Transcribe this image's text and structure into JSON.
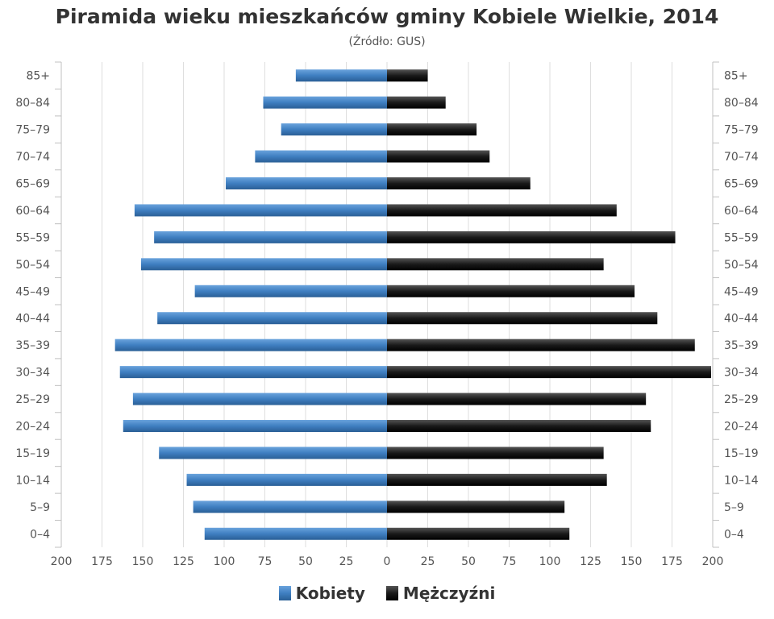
{
  "chart_data": {
    "type": "bar",
    "orientation": "horizontal-population-pyramid",
    "title": "Piramida wieku mieszkańców gminy Kobiele Wielkie, 2014",
    "subtitle": "(Źródło: GUS)",
    "categories": [
      "85+",
      "80–84",
      "75–79",
      "70–74",
      "65–69",
      "60–64",
      "55–59",
      "50–54",
      "45–49",
      "40–44",
      "35–39",
      "30–34",
      "25–29",
      "20–24",
      "15–19",
      "10–14",
      "5–9",
      "0–4"
    ],
    "series": [
      {
        "name": "Kobiety",
        "color": "#3f7fc1",
        "values": [
          56,
          76,
          65,
          81,
          99,
          155,
          143,
          151,
          118,
          141,
          167,
          164,
          156,
          162,
          140,
          123,
          119,
          112
        ]
      },
      {
        "name": "Mężczyźni",
        "color": "#1a1a1a",
        "values": [
          25,
          36,
          55,
          63,
          88,
          141,
          177,
          133,
          152,
          166,
          189,
          199,
          159,
          162,
          133,
          135,
          109,
          112
        ]
      }
    ],
    "xlim": [
      -200,
      200
    ],
    "xticks": [
      "200",
      "175",
      "150",
      "125",
      "100",
      "75",
      "50",
      "25",
      "0",
      "25",
      "50",
      "75",
      "100",
      "125",
      "150",
      "175",
      "200"
    ],
    "grid": true,
    "legend_position": "bottom"
  }
}
